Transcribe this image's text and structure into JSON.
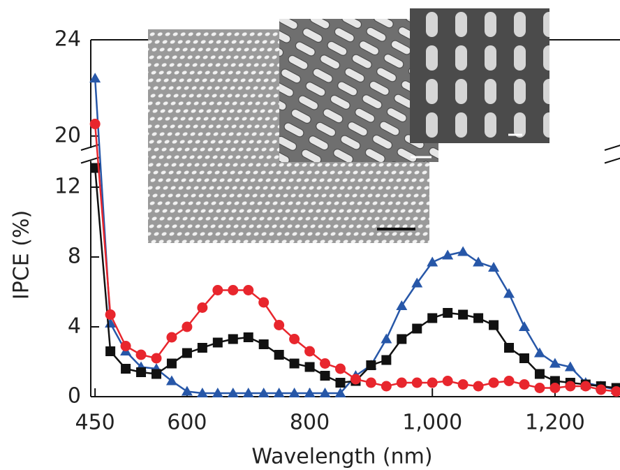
{
  "chart_data": {
    "type": "line",
    "x_label": "Wavelength (nm)",
    "y_label": "IPCE (%)",
    "x": [
      450,
      475,
      500,
      525,
      550,
      575,
      600,
      625,
      650,
      675,
      700,
      725,
      750,
      775,
      800,
      825,
      850,
      875,
      900,
      925,
      950,
      975,
      1000,
      1025,
      1050,
      1075,
      1100,
      1125,
      1150,
      1175,
      1200,
      1225,
      1250,
      1275,
      1300
    ],
    "series": [
      {
        "color": "#2757a8",
        "marker": "triangle",
        "values": [
          22.4,
          4.2,
          2.6,
          1.7,
          1.6,
          0.9,
          0.3,
          0.2,
          0.2,
          0.2,
          0.2,
          0.2,
          0.2,
          0.2,
          0.2,
          0.2,
          0.2,
          1.2,
          1.8,
          3.3,
          5.2,
          6.5,
          7.7,
          8.1,
          8.3,
          7.7,
          7.4,
          5.9,
          4.0,
          2.5,
          1.9,
          1.7,
          0.8,
          0.6,
          0.4
        ]
      },
      {
        "color": "#111111",
        "marker": "square",
        "values": [
          13.1,
          2.6,
          1.6,
          1.4,
          1.3,
          1.9,
          2.5,
          2.8,
          3.1,
          3.3,
          3.4,
          3.0,
          2.4,
          1.9,
          1.7,
          1.2,
          0.8,
          0.9,
          1.8,
          2.1,
          3.3,
          3.9,
          4.5,
          4.8,
          4.7,
          4.5,
          4.1,
          2.8,
          2.2,
          1.3,
          0.9,
          0.8,
          0.7,
          0.6,
          0.5
        ]
      },
      {
        "color": "#e8262d",
        "marker": "circle",
        "values": [
          20.5,
          4.7,
          2.9,
          2.4,
          2.2,
          3.4,
          4.0,
          5.1,
          6.1,
          6.1,
          6.1,
          5.4,
          4.1,
          3.3,
          2.6,
          1.9,
          1.6,
          1.0,
          0.8,
          0.6,
          0.8,
          0.8,
          0.8,
          0.9,
          0.7,
          0.6,
          0.8,
          0.9,
          0.7,
          0.5,
          0.5,
          0.6,
          0.6,
          0.4,
          0.3
        ]
      }
    ],
    "xlim": [
      443,
      1306
    ],
    "xticks": [
      450,
      600,
      800,
      {
        "value": 1000,
        "label": "1,000"
      },
      {
        "value": 1200,
        "label": "1,200"
      }
    ],
    "ylim": [
      0,
      24
    ],
    "ybreak": [
      13.5,
      19.5
    ],
    "yticks": [
      0,
      4,
      8,
      12,
      20,
      24
    ]
  }
}
